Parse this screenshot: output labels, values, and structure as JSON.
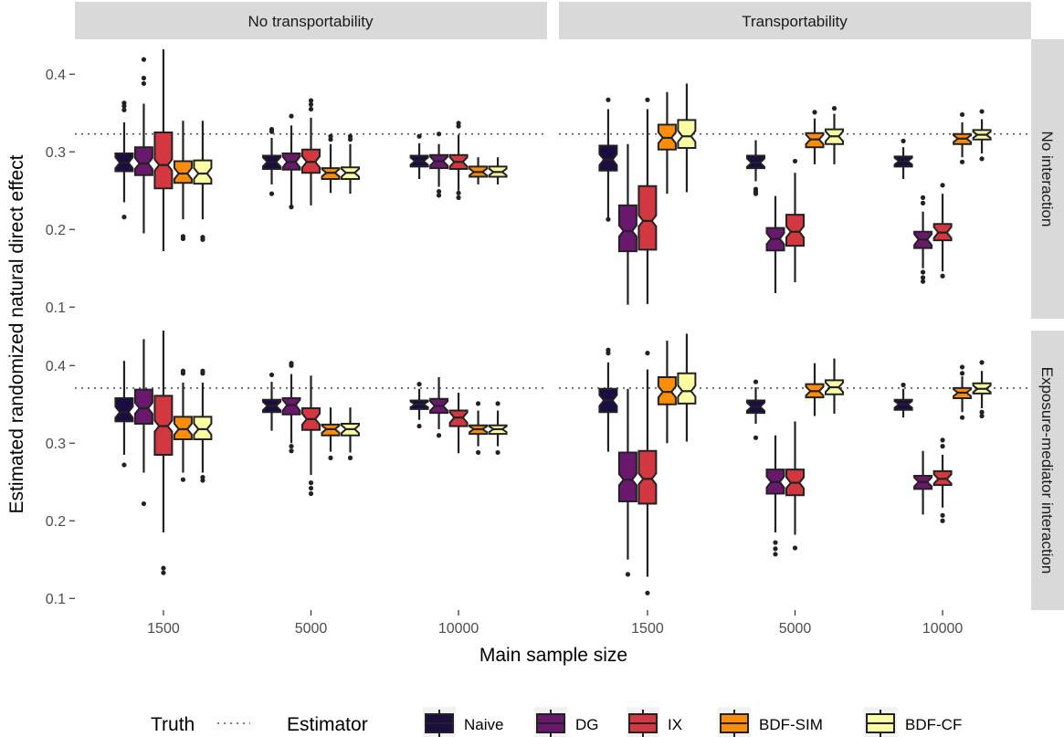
{
  "chart_data": {
    "type": "box",
    "ylabel": "Estimated randomized natural direct effect",
    "xlabel": "Main sample size",
    "columns": [
      "No transportability",
      "Transportability"
    ],
    "rows": [
      "No interaction",
      "Exposure-mediator interaction"
    ],
    "categories": [
      "1500",
      "5000",
      "10000"
    ],
    "y_ticks": [
      0.1,
      0.2,
      0.3,
      0.4
    ],
    "ylim": [
      0.085,
      0.445
    ],
    "truth": [
      0.323,
      0.371
    ],
    "legend": {
      "truth_title": "Truth",
      "estimator_title": "Estimator",
      "position": "bottom",
      "estimators": [
        {
          "name": "Naive",
          "color": "#1b0c41"
        },
        {
          "name": "DG",
          "color": "#6a176e"
        },
        {
          "name": "IX",
          "color": "#d3373f"
        },
        {
          "name": "BDF-SIM",
          "color": "#fb8d09"
        },
        {
          "name": "BDF-CF",
          "color": "#fcfea4"
        }
      ]
    },
    "panels": [
      {
        "row": 0,
        "col": 0,
        "groups": [
          {
            "size": "1500",
            "boxes": [
              {
                "min": 0.235,
                "q1": 0.275,
                "med": 0.286,
                "q3": 0.298,
                "max": 0.338,
                "out": [
                  0.216,
                  0.354,
                  0.359,
                  0.363
                ]
              },
              {
                "min": 0.195,
                "q1": 0.27,
                "med": 0.285,
                "q3": 0.306,
                "max": 0.362,
                "out": [
                  0.388,
                  0.395,
                  0.419
                ]
              },
              {
                "min": 0.172,
                "q1": 0.253,
                "med": 0.283,
                "q3": 0.325,
                "max": 0.432,
                "out": []
              },
              {
                "min": 0.213,
                "q1": 0.26,
                "med": 0.272,
                "q3": 0.288,
                "max": 0.34,
                "out": [
                  0.188,
                  0.191
                ]
              },
              {
                "min": 0.213,
                "q1": 0.259,
                "med": 0.272,
                "q3": 0.289,
                "max": 0.34,
                "out": [
                  0.187,
                  0.19
                ]
              }
            ]
          },
          {
            "size": "5000",
            "boxes": [
              {
                "min": 0.258,
                "q1": 0.278,
                "med": 0.287,
                "q3": 0.295,
                "max": 0.318,
                "out": [
                  0.246,
                  0.326,
                  0.329
                ]
              },
              {
                "min": 0.231,
                "q1": 0.277,
                "med": 0.287,
                "q3": 0.298,
                "max": 0.334,
                "out": [
                  0.229,
                  0.346
                ]
              },
              {
                "min": 0.231,
                "q1": 0.273,
                "med": 0.287,
                "q3": 0.303,
                "max": 0.344,
                "out": [
                  0.355,
                  0.361,
                  0.366
                ]
              },
              {
                "min": 0.247,
                "q1": 0.265,
                "med": 0.273,
                "q3": 0.279,
                "max": 0.31,
                "out": [
                  0.316,
                  0.32
                ]
              },
              {
                "min": 0.246,
                "q1": 0.265,
                "med": 0.273,
                "q3": 0.28,
                "max": 0.31,
                "out": [
                  0.316,
                  0.32
                ]
              }
            ]
          },
          {
            "size": "10000",
            "boxes": [
              {
                "min": 0.265,
                "q1": 0.281,
                "med": 0.288,
                "q3": 0.295,
                "max": 0.311,
                "out": [
                  0.32
                ]
              },
              {
                "min": 0.255,
                "q1": 0.279,
                "med": 0.288,
                "q3": 0.296,
                "max": 0.31,
                "out": [
                  0.244,
                  0.249,
                  0.323
                ]
              },
              {
                "min": 0.25,
                "q1": 0.278,
                "med": 0.287,
                "q3": 0.296,
                "max": 0.322,
                "out": [
                  0.241,
                  0.247,
                  0.333,
                  0.337
                ]
              },
              {
                "min": 0.258,
                "q1": 0.268,
                "med": 0.274,
                "q3": 0.281,
                "max": 0.293,
                "out": []
              },
              {
                "min": 0.258,
                "q1": 0.268,
                "med": 0.274,
                "q3": 0.281,
                "max": 0.293,
                "out": []
              }
            ]
          }
        ]
      },
      {
        "row": 0,
        "col": 1,
        "groups": [
          {
            "size": "1500",
            "boxes": [
              {
                "min": 0.215,
                "q1": 0.276,
                "med": 0.29,
                "q3": 0.308,
                "max": 0.355,
                "out": [
                  0.213,
                  0.367
                ]
              },
              {
                "min": 0.103,
                "q1": 0.172,
                "med": 0.198,
                "q3": 0.231,
                "max": 0.31,
                "out": []
              },
              {
                "min": 0.104,
                "q1": 0.174,
                "med": 0.211,
                "q3": 0.256,
                "max": 0.355,
                "out": [
                  0.367
                ]
              },
              {
                "min": 0.246,
                "q1": 0.303,
                "med": 0.318,
                "q3": 0.335,
                "max": 0.377,
                "out": []
              },
              {
                "min": 0.248,
                "q1": 0.305,
                "med": 0.32,
                "q3": 0.341,
                "max": 0.388,
                "out": []
              }
            ]
          },
          {
            "size": "5000",
            "boxes": [
              {
                "min": 0.262,
                "q1": 0.279,
                "med": 0.286,
                "q3": 0.295,
                "max": 0.315,
                "out": [
                  0.246,
                  0.249,
                  0.252
                ]
              },
              {
                "min": 0.118,
                "q1": 0.173,
                "med": 0.188,
                "q3": 0.202,
                "max": 0.243,
                "out": []
              },
              {
                "min": 0.132,
                "q1": 0.179,
                "med": 0.197,
                "q3": 0.219,
                "max": 0.273,
                "out": [
                  0.288
                ]
              },
              {
                "min": 0.284,
                "q1": 0.306,
                "med": 0.316,
                "q3": 0.324,
                "max": 0.343,
                "out": [
                  0.351
                ]
              },
              {
                "min": 0.284,
                "q1": 0.31,
                "med": 0.32,
                "q3": 0.329,
                "max": 0.349,
                "out": [
                  0.356
                ]
              }
            ]
          },
          {
            "size": "10000",
            "boxes": [
              {
                "min": 0.265,
                "q1": 0.281,
                "med": 0.288,
                "q3": 0.294,
                "max": 0.306,
                "out": [
                  0.314
                ]
              },
              {
                "min": 0.15,
                "q1": 0.176,
                "med": 0.187,
                "q3": 0.197,
                "max": 0.223,
                "out": [
                  0.133,
                  0.138,
                  0.145,
                  0.234,
                  0.241
                ]
              },
              {
                "min": 0.146,
                "q1": 0.186,
                "med": 0.196,
                "q3": 0.207,
                "max": 0.246,
                "out": [
                  0.14,
                  0.257
                ]
              },
              {
                "min": 0.293,
                "q1": 0.31,
                "med": 0.317,
                "q3": 0.323,
                "max": 0.338,
                "out": [
                  0.287,
                  0.348
                ]
              },
              {
                "min": 0.298,
                "q1": 0.316,
                "med": 0.322,
                "q3": 0.328,
                "max": 0.342,
                "out": [
                  0.291,
                  0.352
                ]
              }
            ]
          }
        ]
      },
      {
        "row": 1,
        "col": 0,
        "groups": [
          {
            "size": "1500",
            "boxes": [
              {
                "min": 0.285,
                "q1": 0.328,
                "med": 0.34,
                "q3": 0.358,
                "max": 0.406,
                "out": [
                  0.272
                ]
              },
              {
                "min": 0.262,
                "q1": 0.325,
                "med": 0.345,
                "q3": 0.369,
                "max": 0.434,
                "out": [
                  0.222
                ]
              },
              {
                "min": 0.185,
                "q1": 0.285,
                "med": 0.322,
                "q3": 0.361,
                "max": 0.445,
                "out": [
                  0.133,
                  0.139
                ]
              },
              {
                "min": 0.262,
                "q1": 0.305,
                "med": 0.318,
                "q3": 0.334,
                "max": 0.378,
                "out": [
                  0.253,
                  0.39,
                  0.393
                ]
              },
              {
                "min": 0.262,
                "q1": 0.305,
                "med": 0.318,
                "q3": 0.334,
                "max": 0.378,
                "out": [
                  0.252,
                  0.256,
                  0.39,
                  0.393
                ]
              }
            ]
          },
          {
            "size": "5000",
            "boxes": [
              {
                "min": 0.316,
                "q1": 0.34,
                "med": 0.348,
                "q3": 0.356,
                "max": 0.379,
                "out": [
                  0.388
                ]
              },
              {
                "min": 0.3,
                "q1": 0.337,
                "med": 0.349,
                "q3": 0.358,
                "max": 0.389,
                "out": [
                  0.29,
                  0.296,
                  0.4,
                  0.403
                ]
              },
              {
                "min": 0.259,
                "q1": 0.317,
                "med": 0.331,
                "q3": 0.345,
                "max": 0.387,
                "out": [
                  0.235,
                  0.242,
                  0.249
                ]
              },
              {
                "min": 0.289,
                "q1": 0.31,
                "med": 0.318,
                "q3": 0.324,
                "max": 0.346,
                "out": [
                  0.281
                ]
              },
              {
                "min": 0.288,
                "q1": 0.31,
                "med": 0.318,
                "q3": 0.325,
                "max": 0.346,
                "out": [
                  0.281
                ]
              }
            ]
          },
          {
            "size": "10000",
            "boxes": [
              {
                "min": 0.33,
                "q1": 0.344,
                "med": 0.35,
                "q3": 0.355,
                "max": 0.37,
                "out": [
                  0.322,
                  0.376
                ]
              },
              {
                "min": 0.318,
                "q1": 0.339,
                "med": 0.348,
                "q3": 0.357,
                "max": 0.385,
                "out": [
                  0.31
                ]
              },
              {
                "min": 0.287,
                "q1": 0.322,
                "med": 0.333,
                "q3": 0.342,
                "max": 0.365,
                "out": []
              },
              {
                "min": 0.296,
                "q1": 0.312,
                "med": 0.318,
                "q3": 0.323,
                "max": 0.342,
                "out": [
                  0.288,
                  0.351
                ]
              },
              {
                "min": 0.296,
                "q1": 0.312,
                "med": 0.318,
                "q3": 0.323,
                "max": 0.342,
                "out": [
                  0.288,
                  0.351
                ]
              }
            ]
          }
        ]
      },
      {
        "row": 1,
        "col": 1,
        "groups": [
          {
            "size": "1500",
            "boxes": [
              {
                "min": 0.289,
                "q1": 0.34,
                "med": 0.355,
                "q3": 0.37,
                "max": 0.404,
                "out": [
                  0.416,
                  0.42
                ]
              },
              {
                "min": 0.15,
                "q1": 0.225,
                "med": 0.253,
                "q3": 0.288,
                "max": 0.37,
                "out": [
                  0.131
                ]
              },
              {
                "min": 0.128,
                "q1": 0.222,
                "med": 0.254,
                "q3": 0.29,
                "max": 0.395,
                "out": [
                  0.107,
                  0.416
                ]
              },
              {
                "min": 0.3,
                "q1": 0.35,
                "med": 0.366,
                "q3": 0.385,
                "max": 0.432,
                "out": []
              },
              {
                "min": 0.302,
                "q1": 0.351,
                "med": 0.367,
                "q3": 0.39,
                "max": 0.441,
                "out": []
              }
            ]
          },
          {
            "size": "5000",
            "boxes": [
              {
                "min": 0.325,
                "q1": 0.339,
                "med": 0.347,
                "q3": 0.355,
                "max": 0.372,
                "out": [
                  0.307,
                  0.379
                ]
              },
              {
                "min": 0.185,
                "q1": 0.235,
                "med": 0.25,
                "q3": 0.266,
                "max": 0.31,
                "out": [
                  0.157,
                  0.164,
                  0.172
                ]
              },
              {
                "min": 0.182,
                "q1": 0.233,
                "med": 0.249,
                "q3": 0.266,
                "max": 0.328,
                "out": [
                  0.165
                ]
              },
              {
                "min": 0.335,
                "q1": 0.359,
                "med": 0.367,
                "q3": 0.376,
                "max": 0.403,
                "out": []
              },
              {
                "min": 0.338,
                "q1": 0.363,
                "med": 0.372,
                "q3": 0.381,
                "max": 0.409,
                "out": []
              }
            ]
          },
          {
            "size": "10000",
            "boxes": [
              {
                "min": 0.333,
                "q1": 0.343,
                "med": 0.35,
                "q3": 0.356,
                "max": 0.37,
                "out": [
                  0.375
                ]
              },
              {
                "min": 0.208,
                "q1": 0.241,
                "med": 0.25,
                "q3": 0.258,
                "max": 0.29,
                "out": []
              },
              {
                "min": 0.217,
                "q1": 0.246,
                "med": 0.254,
                "q3": 0.264,
                "max": 0.285,
                "out": [
                  0.2,
                  0.207,
                  0.296,
                  0.304
                ]
              },
              {
                "min": 0.34,
                "q1": 0.358,
                "med": 0.365,
                "q3": 0.371,
                "max": 0.386,
                "out": [
                  0.333,
                  0.39,
                  0.398
                ]
              },
              {
                "min": 0.345,
                "q1": 0.364,
                "med": 0.37,
                "q3": 0.377,
                "max": 0.393,
                "out": [
                  0.335,
                  0.34,
                  0.404
                ]
              }
            ]
          }
        ]
      }
    ]
  }
}
